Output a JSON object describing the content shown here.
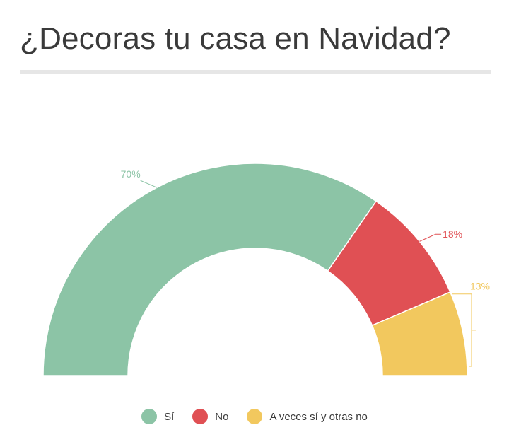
{
  "title": "¿Decoras tu casa en Navidad?",
  "chart_data": {
    "type": "pie",
    "variant": "half-donut",
    "series": [
      {
        "name": "Sí",
        "value": 70,
        "label": "70%",
        "color": "#8cc4a6"
      },
      {
        "name": "No",
        "value": 18,
        "label": "18%",
        "color": "#e05054"
      },
      {
        "name": "A veces sí y otras no",
        "value": 13,
        "label": "13%",
        "color": "#f2c85e"
      }
    ],
    "legend_position": "bottom"
  }
}
